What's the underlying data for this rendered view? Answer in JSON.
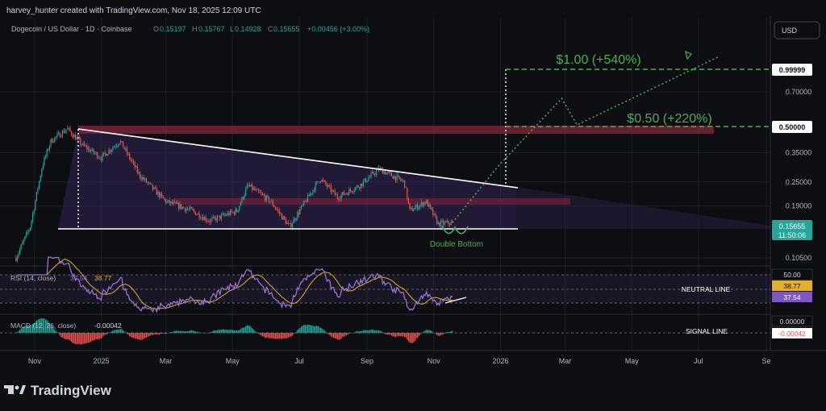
{
  "header": {
    "credit": "harvey_hunter created with TradingView.com, Nov 18, 2025 12:09 UTC",
    "symbol": "Dogecoin / US Dollar · 1D · Coinbase",
    "ohlc": [
      {
        "k": "O",
        "v": "0.15197"
      },
      {
        "k": "H",
        "v": "0.15767"
      },
      {
        "k": "L",
        "v": "0.14928"
      },
      {
        "k": "C",
        "v": "0.15655"
      }
    ],
    "change": "+0.00456 (+3.00%)",
    "currency_button": "USD"
  },
  "colors": {
    "background": "#0d0e12",
    "up": "#26a69a",
    "down": "#ef5350",
    "annotation_green": "#4caf50",
    "resistance_zone": "#7a2238",
    "rsi_line": "#7e57c2",
    "rsi_ma": "#e0b02e",
    "trendline": "#ffffff"
  },
  "annotations": {
    "target_1": "$1.00 (+540%)",
    "target_2": "$0.50 (+220%)",
    "pattern": "Double Bottom",
    "neutral_line": "NEUTRAL LINE",
    "signal_line": "SIGNAL LINE"
  },
  "rsi": {
    "label": "RSI (14, close)",
    "value": "37.54",
    "ma_value": "38.77",
    "levels": [
      "50.00",
      "38.77",
      "37.54"
    ]
  },
  "macd": {
    "label": "MACD (12, 26, close)",
    "value": "-0.00042",
    "levels": [
      "0.00000",
      "-0.00042"
    ]
  },
  "price_badges": {
    "current": "0.15655",
    "countdown": "11:50:06",
    "t1": "0.99999",
    "t2": "0.50000"
  },
  "brand": "TradingView",
  "chart_data": {
    "type": "candlestick",
    "title": "Dogecoin / US Dollar · 1D · Coinbase",
    "y_scale": "log",
    "ylim": [
      0.085,
      1.2
    ],
    "y_ticks": [
      "0.70000",
      "0.35000",
      "0.25000",
      "0.19000",
      "0.10500"
    ],
    "x_ticks": [
      "Nov",
      "2025",
      "Mar",
      "May",
      "Jul",
      "Sep",
      "Nov",
      "2026",
      "Mar",
      "May",
      "Jul",
      "Se"
    ],
    "price_path": [
      [
        "2024-10-15",
        0.105
      ],
      [
        "2024-10-28",
        0.15
      ],
      [
        "2024-11-08",
        0.3
      ],
      [
        "2024-11-16",
        0.4
      ],
      [
        "2024-12-01",
        0.46
      ],
      [
        "2024-12-15",
        0.38
      ],
      [
        "2025-01-01",
        0.33
      ],
      [
        "2025-01-18",
        0.4
      ],
      [
        "2025-02-05",
        0.27
      ],
      [
        "2025-03-01",
        0.2
      ],
      [
        "2025-03-25",
        0.18
      ],
      [
        "2025-04-10",
        0.16
      ],
      [
        "2025-05-05",
        0.18
      ],
      [
        "2025-05-15",
        0.24
      ],
      [
        "2025-06-05",
        0.2
      ],
      [
        "2025-06-22",
        0.15
      ],
      [
        "2025-07-20",
        0.26
      ],
      [
        "2025-08-05",
        0.21
      ],
      [
        "2025-08-25",
        0.24
      ],
      [
        "2025-09-12",
        0.29
      ],
      [
        "2025-10-05",
        0.25
      ],
      [
        "2025-10-10",
        0.18
      ],
      [
        "2025-10-25",
        0.2
      ],
      [
        "2025-11-05",
        0.155
      ],
      [
        "2025-11-18",
        0.15655
      ]
    ],
    "projection": [
      [
        "2025-11-18",
        0.157
      ],
      [
        "2025-12-30",
        0.3
      ],
      [
        "2026-02-26",
        0.65
      ],
      [
        "2026-03-12",
        0.48
      ],
      [
        "2026-07-20",
        1.05
      ]
    ],
    "levels": {
      "resistance_zone": [
        0.46,
        0.48
      ],
      "mid_zone": [
        0.205,
        0.215
      ],
      "support": 0.15655,
      "target_1": 0.99999,
      "target_2": 0.5
    }
  }
}
